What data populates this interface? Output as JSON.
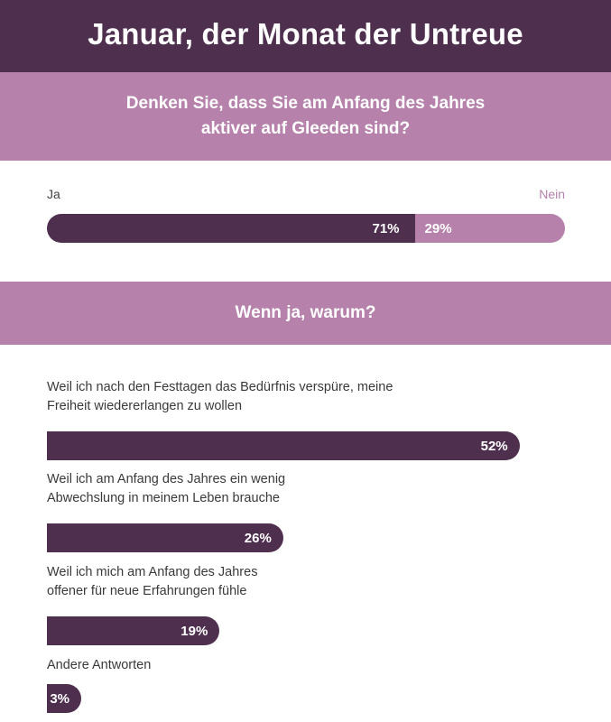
{
  "title": "Januar, der Monat der Untreue",
  "question1": "Denken Sie, dass Sie am Anfang des Jahres aktiver auf Gleeden sind?",
  "question2": "Wenn ja, warum?",
  "colors": {
    "dark": "#4e2f4e",
    "light": "#b682ab"
  },
  "chart_data": [
    {
      "type": "bar",
      "title": "Denken Sie, dass Sie am Anfang des Jahres aktiver auf Gleeden sind?",
      "orientation": "horizontal-stacked",
      "categories": [
        "Ja",
        "Nein"
      ],
      "values": [
        71,
        29
      ],
      "value_labels": [
        "71%",
        "29%"
      ],
      "unit": "%"
    },
    {
      "type": "bar",
      "title": "Wenn ja, warum?",
      "orientation": "horizontal",
      "categories": [
        "Weil ich nach den Festtagen das Bedürfnis verspüre, meine Freiheit wiedererlangen zu wollen",
        "Weil ich am Anfang des Jahres ein wenig Abwechslung in meinem Leben brauche",
        "Weil ich mich am Anfang des Jahres offener für neue Erfahrungen fühle",
        "Andere Antworten"
      ],
      "values": [
        52,
        26,
        19,
        3
      ],
      "value_labels": [
        "52%",
        "26%",
        "19%",
        "3%"
      ],
      "unit": "%"
    }
  ]
}
